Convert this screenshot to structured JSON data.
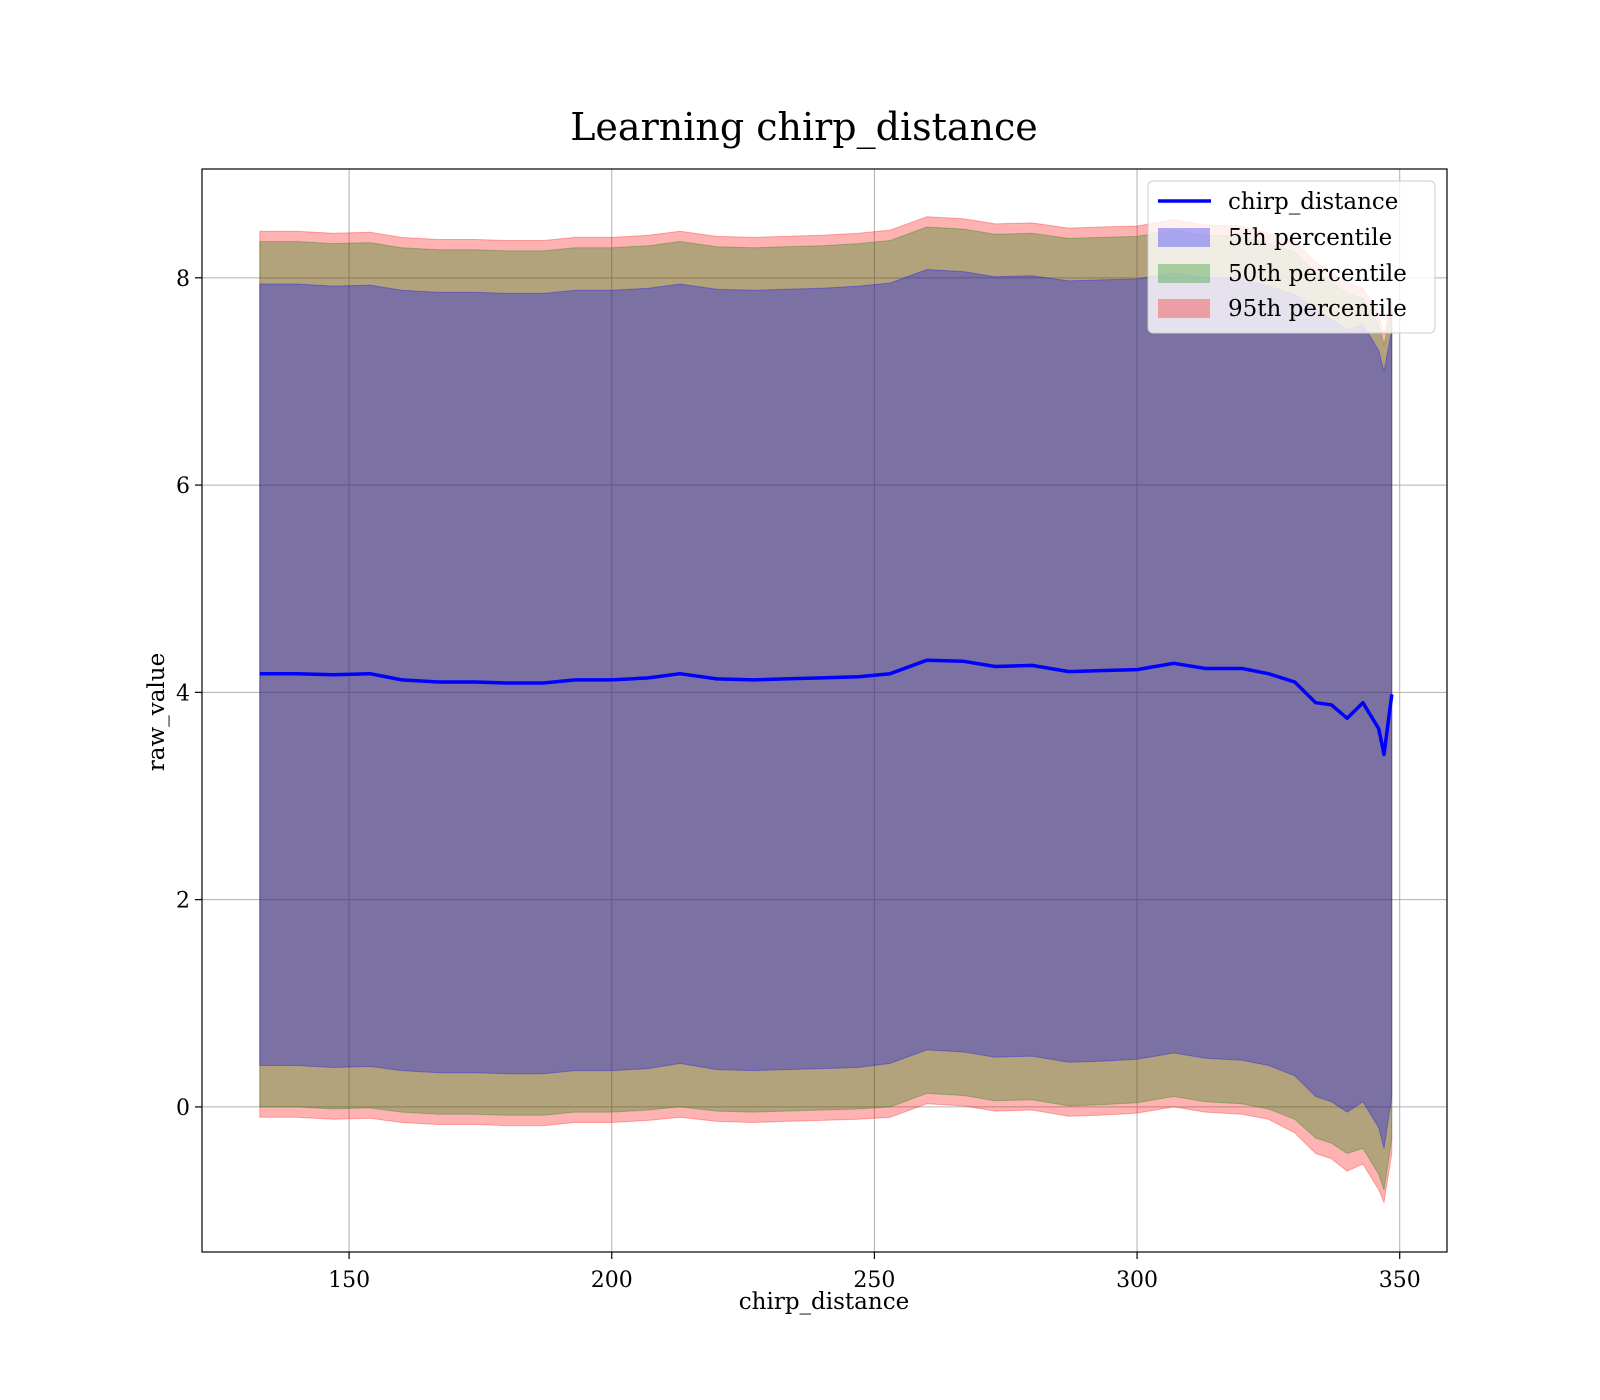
{
  "chart_data": {
    "type": "area",
    "title": "Learning chirp_distance",
    "xlabel": "chirp_distance",
    "ylabel": "raw_value",
    "xlim": [
      122,
      359
    ],
    "ylim": [
      -1.4,
      9.05
    ],
    "xticks": [
      150,
      200,
      250,
      300,
      350
    ],
    "yticks": [
      0,
      2,
      4,
      6,
      8
    ],
    "grid": true,
    "legend_position": "top-right",
    "legend": [
      "chirp_distance",
      "5th percentile",
      "50th percentile",
      "95th percentile"
    ],
    "colors": {
      "line": "#0000ff",
      "p5": "#0000ff",
      "p50": "#008000",
      "p95": "#ff0000"
    },
    "x": [
      133,
      140,
      147,
      154,
      160,
      167,
      174,
      180,
      187,
      193,
      200,
      207,
      213,
      220,
      227,
      233,
      240,
      247,
      253,
      260,
      267,
      273,
      280,
      287,
      293,
      300,
      307,
      313,
      320,
      325,
      330,
      334,
      337,
      340,
      343,
      346,
      347,
      348.5
    ],
    "series": [
      {
        "name": "chirp_distance",
        "values": [
          4.18,
          4.18,
          4.17,
          4.18,
          4.12,
          4.1,
          4.1,
          4.09,
          4.09,
          4.12,
          4.12,
          4.14,
          4.18,
          4.13,
          4.12,
          4.13,
          4.14,
          4.15,
          4.18,
          4.31,
          4.3,
          4.25,
          4.26,
          4.2,
          4.21,
          4.22,
          4.28,
          4.23,
          4.23,
          4.18,
          4.1,
          3.9,
          3.88,
          3.75,
          3.9,
          3.65,
          3.4,
          3.98
        ]
      },
      {
        "name": "5th percentile",
        "lower": [
          0.4,
          0.4,
          0.38,
          0.39,
          0.35,
          0.33,
          0.33,
          0.32,
          0.32,
          0.35,
          0.35,
          0.37,
          0.42,
          0.36,
          0.35,
          0.36,
          0.37,
          0.38,
          0.42,
          0.55,
          0.53,
          0.48,
          0.49,
          0.43,
          0.44,
          0.46,
          0.52,
          0.47,
          0.45,
          0.4,
          0.3,
          0.1,
          0.05,
          -0.05,
          0.05,
          -0.2,
          -0.4,
          0.1
        ],
        "upper": [
          7.94,
          7.94,
          7.92,
          7.93,
          7.88,
          7.86,
          7.86,
          7.85,
          7.85,
          7.88,
          7.88,
          7.9,
          7.94,
          7.89,
          7.88,
          7.89,
          7.9,
          7.92,
          7.95,
          8.08,
          8.06,
          8.01,
          8.02,
          7.97,
          7.98,
          7.99,
          8.05,
          8.0,
          7.99,
          7.92,
          7.84,
          7.7,
          7.6,
          7.5,
          7.55,
          7.3,
          7.1,
          7.5
        ]
      },
      {
        "name": "50th percentile",
        "lower": [
          0.0,
          0.0,
          -0.02,
          -0.01,
          -0.05,
          -0.07,
          -0.07,
          -0.08,
          -0.08,
          -0.05,
          -0.05,
          -0.03,
          0.0,
          -0.04,
          -0.05,
          -0.04,
          -0.03,
          -0.02,
          0.0,
          0.13,
          0.11,
          0.06,
          0.07,
          0.01,
          0.02,
          0.04,
          0.1,
          0.05,
          0.03,
          -0.02,
          -0.12,
          -0.3,
          -0.35,
          -0.45,
          -0.4,
          -0.65,
          -0.8,
          -0.3
        ],
        "upper": [
          8.35,
          8.35,
          8.33,
          8.34,
          8.29,
          8.27,
          8.27,
          8.26,
          8.26,
          8.29,
          8.29,
          8.31,
          8.35,
          8.3,
          8.29,
          8.3,
          8.31,
          8.33,
          8.36,
          8.49,
          8.47,
          8.42,
          8.43,
          8.38,
          8.39,
          8.4,
          8.46,
          8.41,
          8.4,
          8.33,
          8.25,
          8.05,
          7.95,
          7.85,
          7.8,
          7.55,
          7.35,
          7.7
        ]
      },
      {
        "name": "95th percentile",
        "lower": [
          -0.1,
          -0.1,
          -0.12,
          -0.11,
          -0.15,
          -0.17,
          -0.17,
          -0.18,
          -0.18,
          -0.15,
          -0.15,
          -0.13,
          -0.1,
          -0.14,
          -0.15,
          -0.14,
          -0.13,
          -0.12,
          -0.1,
          0.03,
          0.01,
          -0.04,
          -0.03,
          -0.09,
          -0.08,
          -0.06,
          0.0,
          -0.05,
          -0.07,
          -0.12,
          -0.25,
          -0.45,
          -0.5,
          -0.62,
          -0.55,
          -0.8,
          -0.92,
          -0.45
        ],
        "upper": [
          8.45,
          8.45,
          8.43,
          8.44,
          8.39,
          8.37,
          8.37,
          8.36,
          8.36,
          8.39,
          8.39,
          8.41,
          8.45,
          8.4,
          8.39,
          8.4,
          8.41,
          8.43,
          8.46,
          8.59,
          8.57,
          8.52,
          8.53,
          8.48,
          8.49,
          8.5,
          8.56,
          8.51,
          8.5,
          8.43,
          8.35,
          8.15,
          8.05,
          7.95,
          7.9,
          7.65,
          7.45,
          7.8
        ]
      }
    ]
  }
}
